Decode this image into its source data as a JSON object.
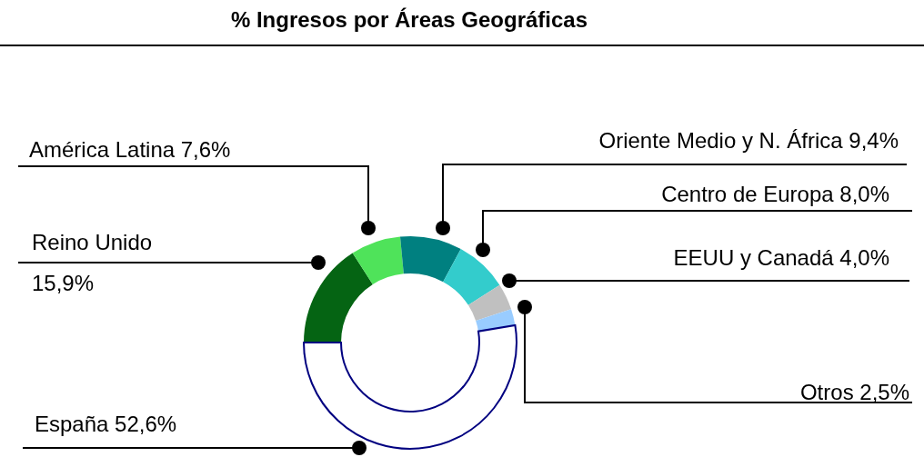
{
  "chart_data": {
    "type": "donut",
    "title": "% Ingresos por Áreas Geográficas",
    "categories": [
      "Reino Unido",
      "América Latina",
      "Oriente Medio y N. África",
      "Centro de Europa",
      "EEUU y Canadá",
      "Otros",
      "España"
    ],
    "values": [
      15.9,
      7.6,
      9.4,
      8.0,
      4.0,
      2.5,
      52.6
    ],
    "value_labels": [
      "15,9%",
      "7,6%",
      "9,4%",
      "8,0%",
      "4,0%",
      "2,5%",
      "52,6%"
    ],
    "colors": [
      "#056413",
      "#4fe35a",
      "#008080",
      "#33cccc",
      "#c0c0c0",
      "#99ccff",
      "#ffffff"
    ],
    "legend": false
  }
}
